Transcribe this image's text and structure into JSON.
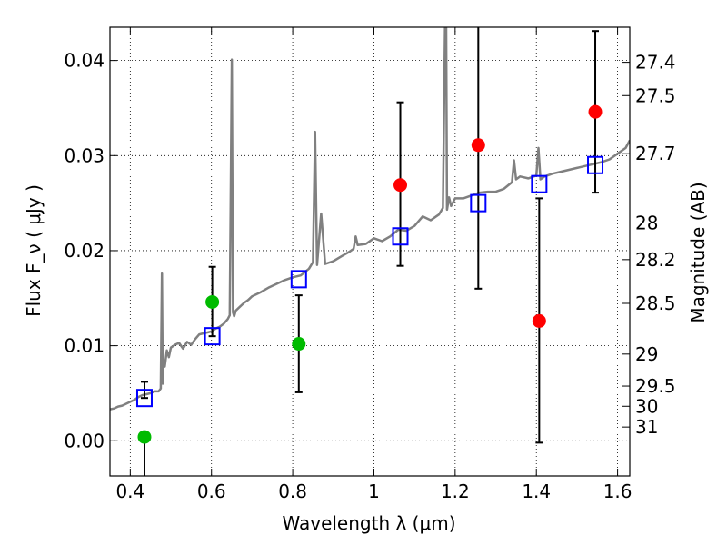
{
  "chart_data": {
    "type": "scatter",
    "xlabel": "Wavelength  λ (μm)",
    "ylabel": "Flux  F_ν  ( μJy )",
    "ylabel_right": "Magnitude (AB)",
    "xlim": [
      0.35,
      1.63
    ],
    "ylim": [
      -0.0037,
      0.0435
    ],
    "grid": true,
    "x_ticks": [
      {
        "value": 0.4,
        "label": "0.4"
      },
      {
        "value": 0.6,
        "label": "0.6"
      },
      {
        "value": 0.8,
        "label": "0.8"
      },
      {
        "value": 1.0,
        "label": "1"
      },
      {
        "value": 1.2,
        "label": "1.2"
      },
      {
        "value": 1.4,
        "label": "1.4"
      },
      {
        "value": 1.6,
        "label": "1.6"
      }
    ],
    "y_ticks": [
      {
        "value": 0.0,
        "label": "0.00"
      },
      {
        "value": 0.01,
        "label": "0.01"
      },
      {
        "value": 0.02,
        "label": "0.02"
      },
      {
        "value": 0.03,
        "label": "0.03"
      },
      {
        "value": 0.04,
        "label": "0.04"
      }
    ],
    "right_ticks": [
      {
        "value": 27.4,
        "label": "27.4"
      },
      {
        "value": 27.5,
        "label": "27.5"
      },
      {
        "value": 27.7,
        "label": "27.7"
      },
      {
        "value": 28.0,
        "label": "28"
      },
      {
        "value": 28.2,
        "label": "28.2"
      },
      {
        "value": 28.5,
        "label": "28.5"
      },
      {
        "value": 29.0,
        "label": "29"
      },
      {
        "value": 29.5,
        "label": "29.5"
      },
      {
        "value": 30.0,
        "label": "30"
      },
      {
        "value": 31.0,
        "label": "31"
      }
    ],
    "series": [
      {
        "marker": "line",
        "color": "#808080",
        "x": [
          0.35,
          0.36,
          0.37,
          0.38,
          0.39,
          0.4,
          0.41,
          0.42,
          0.43,
          0.44,
          0.45,
          0.46,
          0.47,
          0.475,
          0.478,
          0.48,
          0.482,
          0.485,
          0.49,
          0.495,
          0.5,
          0.51,
          0.52,
          0.53,
          0.54,
          0.55,
          0.56,
          0.57,
          0.58,
          0.59,
          0.6,
          0.61,
          0.62,
          0.63,
          0.64,
          0.645,
          0.65,
          0.653,
          0.656,
          0.66,
          0.67,
          0.68,
          0.69,
          0.7,
          0.72,
          0.74,
          0.76,
          0.78,
          0.8,
          0.82,
          0.84,
          0.85,
          0.855,
          0.86,
          0.87,
          0.88,
          0.9,
          0.92,
          0.94,
          0.95,
          0.955,
          0.96,
          0.98,
          1.0,
          1.02,
          1.04,
          1.06,
          1.08,
          1.1,
          1.12,
          1.14,
          1.16,
          1.17,
          1.175,
          1.178,
          1.18,
          1.185,
          1.19,
          1.2,
          1.22,
          1.24,
          1.26,
          1.28,
          1.3,
          1.32,
          1.34,
          1.345,
          1.35,
          1.36,
          1.38,
          1.4,
          1.405,
          1.41,
          1.42,
          1.44,
          1.46,
          1.48,
          1.5,
          1.52,
          1.54,
          1.56,
          1.58,
          1.6,
          1.62,
          1.63
        ],
        "y": [
          0.0033,
          0.0034,
          0.0036,
          0.0037,
          0.0039,
          0.0041,
          0.0043,
          0.0046,
          0.0048,
          0.0049,
          0.005,
          0.0052,
          0.0052,
          0.0055,
          0.0176,
          0.006,
          0.0085,
          0.0078,
          0.0095,
          0.0088,
          0.0098,
          0.0101,
          0.0103,
          0.0097,
          0.0104,
          0.0101,
          0.0107,
          0.0112,
          0.0113,
          0.0114,
          0.0115,
          0.0118,
          0.012,
          0.0123,
          0.0128,
          0.0132,
          0.0401,
          0.0135,
          0.0131,
          0.0137,
          0.0141,
          0.0145,
          0.0148,
          0.0152,
          0.0156,
          0.0161,
          0.0165,
          0.0169,
          0.0172,
          0.0174,
          0.0181,
          0.0188,
          0.0325,
          0.0185,
          0.0239,
          0.0186,
          0.0189,
          0.0194,
          0.0199,
          0.0202,
          0.0215,
          0.0206,
          0.0207,
          0.0213,
          0.021,
          0.0215,
          0.0222,
          0.0221,
          0.0226,
          0.0236,
          0.0232,
          0.0238,
          0.0245,
          0.0435,
          0.0435,
          0.0243,
          0.0256,
          0.0247,
          0.0255,
          0.0255,
          0.0258,
          0.0261,
          0.0262,
          0.0262,
          0.0265,
          0.0272,
          0.0295,
          0.0275,
          0.0278,
          0.0276,
          0.0279,
          0.0308,
          0.0275,
          0.0278,
          0.0281,
          0.0283,
          0.0285,
          0.0287,
          0.0289,
          0.0291,
          0.0293,
          0.0296,
          0.0302,
          0.0308,
          0.0316
        ]
      },
      {
        "marker": "open-square",
        "color": "#0000ff",
        "x": [
          0.435,
          0.602,
          0.815,
          1.065,
          1.257,
          1.407,
          1.545
        ],
        "y": [
          0.0045,
          0.011,
          0.017,
          0.0215,
          0.025,
          0.027,
          0.029
        ],
        "yerr_low": [
          0.0,
          0.0,
          0.0,
          0.0,
          0.0,
          0.0,
          0.0
        ],
        "yerr_high": [
          0.0017,
          0.0,
          0.0,
          0.0,
          0.0,
          0.0,
          0.0
        ]
      },
      {
        "marker": "circle",
        "color": "#00bb00",
        "x": [
          0.435,
          0.602,
          0.815
        ],
        "y": [
          0.0004,
          0.0146,
          0.0102
        ],
        "yerr_low": [
          0.0041,
          0.0036,
          0.0051
        ],
        "yerr_high": [
          0.0,
          0.0037,
          0.0051
        ]
      },
      {
        "marker": "circle",
        "color": "#ff0000",
        "x": [
          1.065,
          1.257,
          1.407,
          1.545
        ],
        "y": [
          0.0269,
          0.0311,
          0.0126,
          0.0346
        ],
        "yerr_low": [
          0.0085,
          0.0151,
          0.0128,
          0.0085
        ],
        "yerr_high": [
          0.0087,
          0.0124,
          0.0129,
          0.0085
        ]
      }
    ]
  }
}
